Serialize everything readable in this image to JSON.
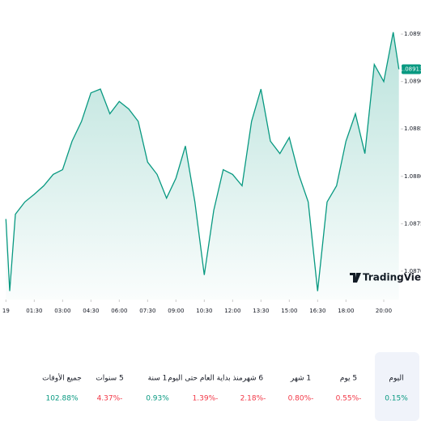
{
  "chart_data": {
    "type": "area",
    "watermark": "TradingView",
    "x": [
      0,
      0.2,
      0.5,
      1,
      1.5,
      2,
      2.5,
      3,
      3.5,
      4,
      4.5,
      5,
      5.5,
      6,
      6.5,
      7,
      7.5,
      8,
      8.5,
      9,
      9.5,
      10,
      10.5,
      11,
      11.5,
      12,
      12.5,
      13,
      13.5,
      14,
      14.5,
      15,
      15.5,
      16,
      16.5,
      17,
      17.5,
      18,
      18.5,
      19,
      19.5,
      20,
      20.5,
      20.8
    ],
    "series": [
      {
        "color": "#089981",
        "values": [
          1.08755,
          1.08679,
          1.0876,
          1.08773,
          1.08781,
          1.0879,
          1.08802,
          1.08807,
          1.08837,
          1.08858,
          1.08888,
          1.08892,
          1.08866,
          1.08879,
          1.08871,
          1.08858,
          1.08815,
          1.08802,
          1.08777,
          1.08798,
          1.08832,
          1.08773,
          1.08696,
          1.08764,
          1.08807,
          1.08802,
          1.0879,
          1.08858,
          1.08892,
          1.08837,
          1.08824,
          1.08841,
          1.08802,
          1.08773,
          1.08679,
          1.08773,
          1.0879,
          1.08837,
          1.08866,
          1.08824,
          1.08918,
          1.089,
          1.08952,
          1.08913
        ]
      }
    ],
    "last_label": "1.08913",
    "xlim": [
      -0.1,
      20.9
    ],
    "xticks": [
      {
        "value": 0,
        "label": "19"
      },
      {
        "value": 1.5,
        "label": "01:30"
      },
      {
        "value": 3,
        "label": "03:00"
      },
      {
        "value": 4.5,
        "label": "04:30"
      },
      {
        "value": 6,
        "label": "06:00"
      },
      {
        "value": 7.5,
        "label": "07:30"
      },
      {
        "value": 9,
        "label": "09:00"
      },
      {
        "value": 10.5,
        "label": "10:30"
      },
      {
        "value": 12,
        "label": "12:00"
      },
      {
        "value": 13.5,
        "label": "13:30"
      },
      {
        "value": 15,
        "label": "15:00"
      },
      {
        "value": 16.5,
        "label": "16:30"
      },
      {
        "value": 18,
        "label": "18:00"
      },
      {
        "value": 20,
        "label": "20:00"
      }
    ],
    "ylim": [
      1.0867,
      1.0898
    ],
    "yticks": [
      {
        "value": 1.087,
        "label": "1.08700"
      },
      {
        "value": 1.0875,
        "label": "1.08750"
      },
      {
        "value": 1.088,
        "label": "1.08800"
      },
      {
        "value": 1.0885,
        "label": "1.08850"
      },
      {
        "value": 1.089,
        "label": "1.08900"
      },
      {
        "value": 1.0895,
        "label": "1.08950"
      }
    ]
  },
  "performance": [
    {
      "period": "اليوم",
      "change": "0.15%",
      "color": "#089981",
      "selected": true
    },
    {
      "period": "5 يوم",
      "change": "0.55%-",
      "color": "#f23645"
    },
    {
      "period": "1 شهر",
      "change": "0.80%-",
      "color": "#f23645"
    },
    {
      "period": "6 شهر",
      "change": "2.18%-",
      "color": "#f23645"
    },
    {
      "period": "منذ بداية العام حتى اليوم",
      "change": "1.39%-",
      "color": "#f23645"
    },
    {
      "period": "1 سنة",
      "change": "0.93%",
      "color": "#089981"
    },
    {
      "period": "5 سنوات",
      "change": "4.37%-",
      "color": "#f23645"
    },
    {
      "period": "جميع الأوقات",
      "change": "102.88%",
      "color": "#089981"
    }
  ]
}
